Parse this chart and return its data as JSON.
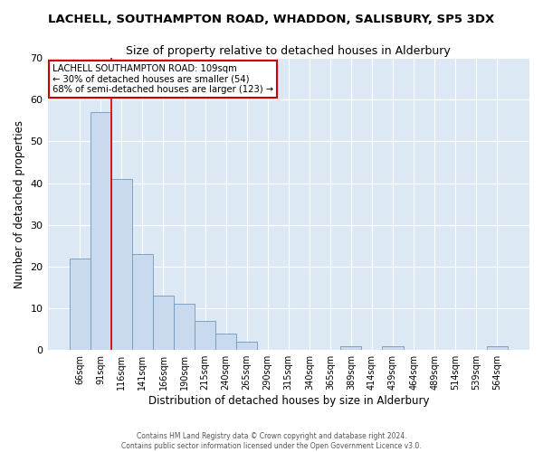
{
  "title": "LACHELL, SOUTHAMPTON ROAD, WHADDON, SALISBURY, SP5 3DX",
  "subtitle": "Size of property relative to detached houses in Alderbury",
  "xlabel": "Distribution of detached houses by size in Alderbury",
  "ylabel": "Number of detached properties",
  "bar_values": [
    22,
    57,
    41,
    23,
    13,
    11,
    7,
    4,
    2,
    0,
    0,
    0,
    0,
    1,
    0,
    1,
    0,
    0,
    0,
    0,
    1
  ],
  "x_tick_labels": [
    "66sqm",
    "91sqm",
    "116sqm",
    "141sqm",
    "166sqm",
    "190sqm",
    "215sqm",
    "240sqm",
    "265sqm",
    "290sqm",
    "315sqm",
    "340sqm",
    "365sqm",
    "389sqm",
    "414sqm",
    "439sqm",
    "464sqm",
    "489sqm",
    "514sqm",
    "539sqm",
    "564sqm"
  ],
  "bar_color": "#c9d9ee",
  "bar_edge_color": "#7099bb",
  "vline_x": 1.5,
  "vline_color": "#cc0000",
  "ylim": [
    0,
    70
  ],
  "yticks": [
    0,
    10,
    20,
    30,
    40,
    50,
    60,
    70
  ],
  "annotation_title": "LACHELL SOUTHAMPTON ROAD: 109sqm",
  "annotation_line1": "← 30% of detached houses are smaller (54)",
  "annotation_line2": "68% of semi-detached houses are larger (123) →",
  "annotation_box_color": "#ffffff",
  "annotation_box_edge": "#cc0000",
  "fig_background_color": "#ffffff",
  "plot_background_color": "#dde8f5",
  "grid_color": "#ffffff",
  "footer_line1": "Contains HM Land Registry data © Crown copyright and database right 2024.",
  "footer_line2": "Contains public sector information licensed under the Open Government Licence v3.0."
}
